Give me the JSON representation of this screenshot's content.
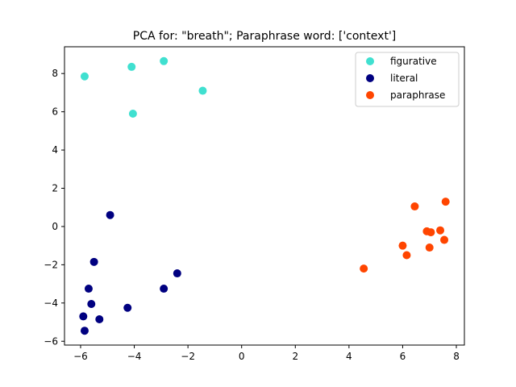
{
  "chart_data": {
    "type": "scatter",
    "title": "PCA for: \"breath\"; Paraphrase word: ['context']",
    "xlabel": "",
    "ylabel": "",
    "xlim": [
      -6.6,
      8.3
    ],
    "ylim": [
      -6.2,
      9.4
    ],
    "xticks": [
      -6,
      -4,
      -2,
      0,
      2,
      4,
      6,
      8
    ],
    "xtick_labels": [
      "−6",
      "−4",
      "−2",
      "0",
      "2",
      "4",
      "6",
      "8"
    ],
    "yticks": [
      -6,
      -4,
      -2,
      0,
      2,
      4,
      6,
      8
    ],
    "ytick_labels": [
      "−6",
      "−4",
      "−2",
      "0",
      "2",
      "4",
      "6",
      "8"
    ],
    "grid": false,
    "legend_position": "top-right",
    "series": [
      {
        "name": "figurative",
        "color": "#40e0d0",
        "points": [
          [
            -5.85,
            7.85
          ],
          [
            -4.1,
            8.35
          ],
          [
            -2.9,
            8.65
          ],
          [
            -1.45,
            7.1
          ],
          [
            -4.05,
            5.9
          ]
        ]
      },
      {
        "name": "literal",
        "color": "#000080",
        "points": [
          [
            -4.9,
            0.6
          ],
          [
            -5.5,
            -1.85
          ],
          [
            -2.4,
            -2.45
          ],
          [
            -2.9,
            -3.25
          ],
          [
            -5.7,
            -3.25
          ],
          [
            -5.6,
            -4.05
          ],
          [
            -4.25,
            -4.25
          ],
          [
            -5.9,
            -4.7
          ],
          [
            -5.3,
            -4.85
          ],
          [
            -5.85,
            -5.45
          ]
        ]
      },
      {
        "name": "paraphrase",
        "color": "#ff4500",
        "points": [
          [
            7.6,
            1.3
          ],
          [
            6.45,
            1.05
          ],
          [
            6.9,
            -0.25
          ],
          [
            7.05,
            -0.3
          ],
          [
            7.4,
            -0.2
          ],
          [
            7.55,
            -0.7
          ],
          [
            6.0,
            -1.0
          ],
          [
            7.0,
            -1.1
          ],
          [
            6.15,
            -1.5
          ],
          [
            4.55,
            -2.2
          ]
        ]
      }
    ]
  }
}
